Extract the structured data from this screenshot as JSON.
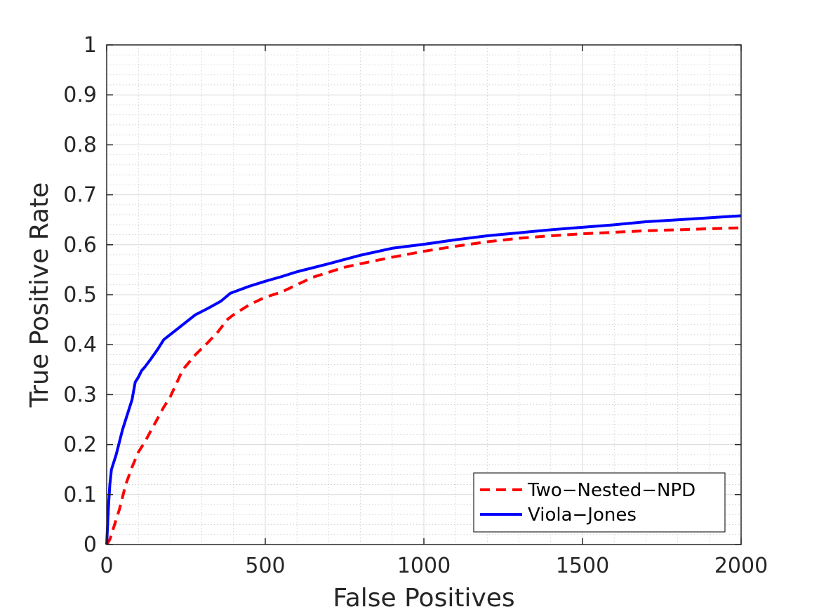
{
  "chart_data": {
    "type": "line",
    "title": "",
    "xlabel": "False Positives",
    "ylabel": "True Positive Rate",
    "xlim": [
      0,
      2000
    ],
    "ylim": [
      0,
      1
    ],
    "xticks": [
      0,
      500,
      1000,
      1500,
      2000
    ],
    "yticks": [
      0,
      0.1,
      0.2,
      0.3,
      0.4,
      0.5,
      0.6,
      0.7,
      0.8,
      0.9,
      1
    ],
    "xtick_labels": [
      "0",
      "500",
      "1000",
      "1500",
      "2000"
    ],
    "ytick_labels": [
      "0",
      "0.1",
      "0.2",
      "0.3",
      "0.4",
      "0.5",
      "0.6",
      "0.7",
      "0.8",
      "0.9",
      "1"
    ],
    "grid": true,
    "minor_grid": true,
    "legend_position": "bottom-right",
    "series": [
      {
        "name": "Two−Nested−NPD",
        "color": "#ff0000",
        "line_style": "dashed",
        "x": [
          0,
          10,
          20,
          40,
          60,
          80,
          100,
          120,
          150,
          180,
          200,
          240,
          280,
          320,
          350,
          380,
          400,
          450,
          500,
          550,
          600,
          650,
          700,
          750,
          800,
          900,
          1000,
          1100,
          1200,
          1300,
          1400,
          1500,
          1600,
          1700,
          1800,
          1900,
          2000
        ],
        "y": [
          0,
          0.01,
          0.03,
          0.07,
          0.12,
          0.155,
          0.185,
          0.205,
          0.24,
          0.275,
          0.295,
          0.35,
          0.38,
          0.405,
          0.425,
          0.45,
          0.46,
          0.48,
          0.495,
          0.505,
          0.52,
          0.535,
          0.545,
          0.555,
          0.562,
          0.575,
          0.587,
          0.597,
          0.606,
          0.613,
          0.618,
          0.622,
          0.625,
          0.628,
          0.63,
          0.632,
          0.634
        ]
      },
      {
        "name": "Viola−Jones",
        "color": "#0000ff",
        "line_style": "solid",
        "x": [
          0,
          3,
          6,
          10,
          15,
          20,
          30,
          40,
          50,
          60,
          70,
          80,
          90,
          100,
          110,
          120,
          140,
          160,
          180,
          200,
          240,
          280,
          320,
          360,
          390,
          450,
          500,
          550,
          600,
          700,
          800,
          900,
          1000,
          1100,
          1200,
          1300,
          1400,
          1500,
          1600,
          1700,
          1800,
          1900,
          2000
        ],
        "y": [
          0,
          0.04,
          0.08,
          0.12,
          0.15,
          0.16,
          0.18,
          0.205,
          0.23,
          0.25,
          0.27,
          0.29,
          0.325,
          0.335,
          0.348,
          0.355,
          0.372,
          0.39,
          0.41,
          0.42,
          0.44,
          0.46,
          0.473,
          0.487,
          0.503,
          0.517,
          0.527,
          0.536,
          0.546,
          0.562,
          0.579,
          0.593,
          0.601,
          0.61,
          0.618,
          0.624,
          0.63,
          0.635,
          0.64,
          0.646,
          0.65,
          0.654,
          0.658
        ]
      }
    ]
  }
}
